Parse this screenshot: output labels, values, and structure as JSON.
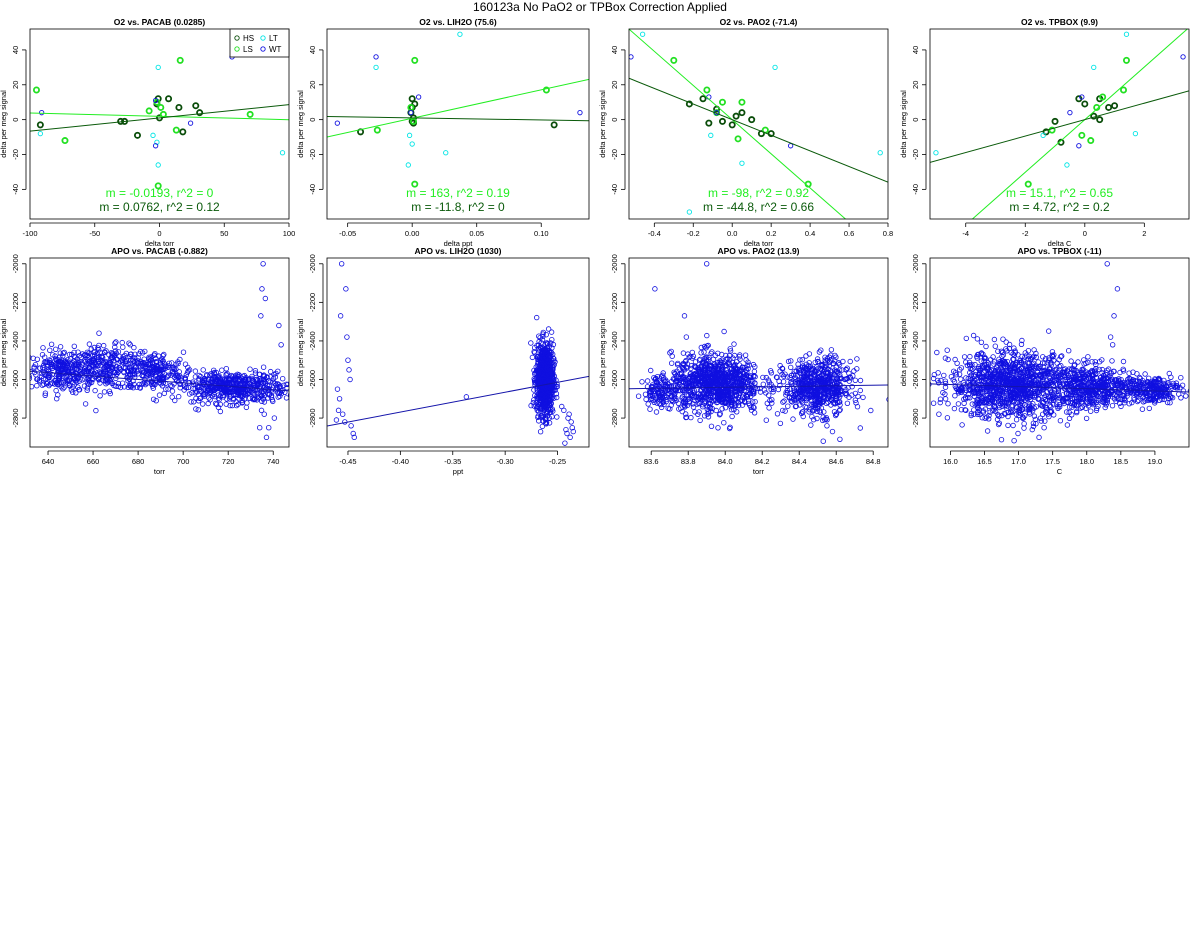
{
  "page": {
    "title": "160123a   No PaO2 or TPBox Correction Applied"
  },
  "colors": {
    "HS": "#0a4d0a",
    "LS": "#22e022",
    "LT": "#00e5e5",
    "WT": "#1010e0",
    "fit_dark": "#0a5a0a",
    "fit_light": "#22ee22",
    "fit_blue": "#1414aa",
    "axis": "#000000"
  },
  "legend": {
    "entries": [
      "HS",
      "LS",
      "LT",
      "WT"
    ]
  },
  "chart_data": [
    {
      "type": "scatter",
      "title": "O2 vs. PACAB (0.0285)",
      "xlabel": "delta torr",
      "ylabel": "delta per meg signal",
      "xlim": [
        -100,
        100
      ],
      "ylim": [
        -57,
        52
      ],
      "xticks": [
        -100,
        -50,
        0,
        50,
        100
      ],
      "xtick_labels": [
        "-100",
        "-50",
        "0",
        "50",
        "100"
      ],
      "yticks": [
        -40,
        -20,
        0,
        20,
        40
      ],
      "ytick_labels": [
        "-40",
        "-20",
        "0",
        "20",
        "40"
      ],
      "show_legend": true,
      "series": [
        {
          "name": "HS",
          "bold": true,
          "x": [
            -92,
            -30,
            -27,
            -17,
            -2,
            -1,
            0,
            7,
            15,
            18,
            28,
            31
          ],
          "y": [
            -3,
            -1,
            -1,
            -9,
            9,
            12,
            1,
            12,
            7,
            -7,
            8,
            4
          ]
        },
        {
          "name": "LS",
          "bold": true,
          "x": [
            -95,
            -73,
            -8,
            -2,
            3,
            13,
            16,
            70,
            -1,
            1
          ],
          "y": [
            17,
            -12,
            5,
            10,
            3,
            -6,
            34,
            3,
            -38,
            7
          ]
        },
        {
          "name": "LT",
          "bold": false,
          "x": [
            -1,
            -1,
            -5,
            -92,
            95,
            -2
          ],
          "y": [
            30,
            -26,
            -9,
            -8,
            -19,
            -13
          ]
        },
        {
          "name": "WT",
          "bold": false,
          "x": [
            -91,
            56,
            -3,
            -3,
            24
          ],
          "y": [
            4,
            36,
            -15,
            11,
            -2
          ]
        }
      ],
      "fits": [
        {
          "group": "LS",
          "slope": -0.0193,
          "intercept": 1.9
        },
        {
          "group": "HS",
          "slope": 0.0762,
          "intercept": 1.0
        }
      ],
      "annotations": [
        "m = -0.0193, r^2 = 0",
        "m = 0.0762, r^2 = 0.12"
      ]
    },
    {
      "type": "scatter",
      "title": "O2 vs. LIH2O (75.6)",
      "xlabel": "delta ppt",
      "ylabel": "delta per meg signal",
      "xlim": [
        -0.066,
        0.137
      ],
      "ylim": [
        -57,
        52
      ],
      "xticks": [
        -0.05,
        0.0,
        0.05,
        0.1
      ],
      "xtick_labels": [
        "-0.05",
        "0.00",
        "0.05",
        "0.10"
      ],
      "yticks": [
        -40,
        -20,
        0,
        20,
        40
      ],
      "ytick_labels": [
        "-40",
        "-20",
        "0",
        "20",
        "40"
      ],
      "show_legend": false,
      "series": [
        {
          "name": "HS",
          "bold": true,
          "x": [
            -0.04,
            0.0,
            0.001,
            0.002,
            0.0,
            0.001,
            -0.001,
            0.0,
            0.11
          ],
          "y": [
            -7,
            12,
            -2,
            9,
            -1,
            1,
            4,
            7,
            -3
          ]
        },
        {
          "name": "LS",
          "bold": true,
          "x": [
            -0.027,
            0.002,
            0.002,
            0.104,
            -0.001,
            0.001
          ],
          "y": [
            -6,
            34,
            -37,
            17,
            7,
            -1
          ]
        },
        {
          "name": "LT",
          "bold": false,
          "x": [
            0.037,
            -0.028,
            0.026,
            -0.002,
            -0.003,
            0.0
          ],
          "y": [
            49,
            30,
            -19,
            -9,
            -26,
            -14
          ]
        },
        {
          "name": "WT",
          "bold": false,
          "x": [
            -0.028,
            0.13,
            -0.058,
            0.005,
            -0.001
          ],
          "y": [
            36,
            4,
            -2,
            13,
            4
          ]
        }
      ],
      "fits": [
        {
          "group": "LS",
          "slope": 163,
          "intercept": 0.8
        },
        {
          "group": "HS",
          "slope": -11.8,
          "intercept": 1.0
        }
      ],
      "annotations": [
        "m = 163, r^2 = 0.19",
        "m = -11.8, r^2 = 0"
      ]
    },
    {
      "type": "scatter",
      "title": "O2 vs. PAO2 (-71.4)",
      "xlabel": "delta torr",
      "ylabel": "delta per meg signal",
      "xlim": [
        -0.53,
        0.8
      ],
      "ylim": [
        -57,
        52
      ],
      "xticks": [
        -0.4,
        -0.2,
        0.0,
        0.2,
        0.4,
        0.6,
        0.8
      ],
      "xtick_labels": [
        "-0.4",
        "-0.2",
        "0.0",
        "0.2",
        "0.4",
        "0.6",
        "0.8"
      ],
      "yticks": [
        -40,
        -20,
        0,
        20,
        40
      ],
      "ytick_labels": [
        "-40",
        "-20",
        "0",
        "20",
        "40"
      ],
      "show_legend": false,
      "series": [
        {
          "name": "HS",
          "bold": true,
          "x": [
            -0.22,
            -0.15,
            -0.08,
            -0.05,
            0.0,
            0.05,
            0.1,
            0.15,
            0.2,
            -0.12,
            0.02
          ],
          "y": [
            9,
            12,
            6,
            -1,
            -3,
            4,
            0,
            -8,
            -8,
            -2,
            2
          ]
        },
        {
          "name": "LS",
          "bold": true,
          "x": [
            -0.3,
            -0.13,
            -0.05,
            0.05,
            0.17,
            0.39,
            -0.08,
            0.03
          ],
          "y": [
            34,
            17,
            10,
            10,
            -6,
            -37,
            4,
            -11
          ]
        },
        {
          "name": "LT",
          "bold": false,
          "x": [
            -0.46,
            0.22,
            0.76,
            -0.22,
            -0.11,
            0.05
          ],
          "y": [
            49,
            30,
            -19,
            -53,
            -9,
            -25
          ]
        },
        {
          "name": "WT",
          "bold": false,
          "x": [
            -0.52,
            -0.12,
            0.3,
            -0.08
          ],
          "y": [
            36,
            13,
            -15,
            4
          ]
        }
      ],
      "fits": [
        {
          "group": "LS",
          "slope": -98,
          "intercept": 0.0
        },
        {
          "group": "HS",
          "slope": -44.8,
          "intercept": 0.0
        }
      ],
      "annotations": [
        "m = -98, r^2 = 0.92",
        "m = -44.8, r^2 = 0.66"
      ]
    },
    {
      "type": "scatter",
      "title": "O2 vs. TPBOX (9.9)",
      "xlabel": "delta C",
      "ylabel": "delta per meg signal",
      "xlim": [
        -5.2,
        3.5
      ],
      "ylim": [
        -57,
        52
      ],
      "xticks": [
        -4,
        -2,
        0,
        2
      ],
      "xtick_labels": [
        "-4",
        "-2",
        "0",
        "2"
      ],
      "yticks": [
        -40,
        -20,
        0,
        20,
        40
      ],
      "ytick_labels": [
        "-40",
        "-20",
        "0",
        "20",
        "40"
      ],
      "show_legend": false,
      "series": [
        {
          "name": "HS",
          "bold": true,
          "x": [
            -1.0,
            -1.3,
            0.0,
            0.3,
            0.5,
            0.8,
            1.0,
            -0.2,
            0.5,
            -0.8
          ],
          "y": [
            -1,
            -7,
            9,
            2,
            12,
            7,
            8,
            12,
            0,
            -13
          ]
        },
        {
          "name": "LS",
          "bold": true,
          "x": [
            -1.9,
            -0.1,
            0.6,
            1.3,
            1.4,
            -1.1,
            0.4,
            0.2
          ],
          "y": [
            -37,
            -9,
            13,
            17,
            34,
            -6,
            7,
            -12
          ]
        },
        {
          "name": "LT",
          "bold": false,
          "x": [
            1.4,
            0.3,
            -5.0,
            1.7,
            -0.6,
            -1.4
          ],
          "y": [
            49,
            30,
            -19,
            -8,
            -26,
            -9
          ]
        },
        {
          "name": "WT",
          "bold": false,
          "x": [
            3.3,
            -0.1,
            -0.2,
            -0.5
          ],
          "y": [
            36,
            13,
            -15,
            4
          ]
        }
      ],
      "fits": [
        {
          "group": "LS",
          "slope": 15.1,
          "intercept": 0.0
        },
        {
          "group": "HS",
          "slope": 4.72,
          "intercept": 0.0
        }
      ],
      "annotations": [
        "m = 15.1, r^2 = 0.65",
        "m = 4.72, r^2 = 0.2"
      ]
    },
    {
      "type": "scatter",
      "title": "APO vs. PACAB (-0.882)",
      "xlabel": "torr",
      "ylabel": "delta per meg signal",
      "xlim": [
        632,
        747
      ],
      "ylim": [
        -2950,
        -1970
      ],
      "xticks": [
        640,
        660,
        680,
        700,
        720,
        740
      ],
      "xtick_labels": [
        "640",
        "660",
        "680",
        "700",
        "720",
        "740"
      ],
      "yticks": [
        -2800,
        -2600,
        -2400,
        -2200,
        -2000
      ],
      "ytick_labels": [
        "-2800",
        "-2600",
        "-2400",
        "-2200",
        "-2000"
      ],
      "show_legend": false,
      "clusters": [
        {
          "cx": 646,
          "cy": -2555,
          "sx": 7,
          "sy": 55,
          "n": 240,
          "tilt": 0
        },
        {
          "cx": 667,
          "cy": -2540,
          "sx": 10,
          "sy": 55,
          "n": 300,
          "tilt": 0
        },
        {
          "cx": 688,
          "cy": -2560,
          "sx": 6,
          "sy": 50,
          "n": 180,
          "tilt": 0
        },
        {
          "cx": 722,
          "cy": -2640,
          "sx": 12,
          "sy": 40,
          "n": 520,
          "tilt": 0
        }
      ],
      "points": {
        "x": [
          735.5,
          735.0,
          736.5,
          734.5,
          742.5,
          743.5,
          740.5,
          738.0,
          737.0,
          734.0,
          736.0,
          734.8
        ],
        "y": [
          -2000,
          -2130,
          -2180,
          -2270,
          -2320,
          -2420,
          -2800,
          -2850,
          -2900,
          -2850,
          -2780,
          -2760
        ]
      },
      "fits": [
        {
          "group": "all",
          "slope": -0.882,
          "intercept": -2000.0
        }
      ]
    },
    {
      "type": "scatter",
      "title": "APO vs. LIH2O (1030)",
      "xlabel": "ppt",
      "ylabel": "delta per meg signal",
      "xlim": [
        -0.47,
        -0.22
      ],
      "ylim": [
        -2950,
        -1970
      ],
      "xticks": [
        -0.45,
        -0.4,
        -0.35,
        -0.3,
        -0.25
      ],
      "xtick_labels": [
        "-0.45",
        "-0.40",
        "-0.35",
        "-0.30",
        "-0.25"
      ],
      "yticks": [
        -2800,
        -2600,
        -2400,
        -2200,
        -2000
      ],
      "ytick_labels": [
        "-2800",
        "-2600",
        "-2400",
        "-2200",
        "-2000"
      ],
      "show_legend": false,
      "clusters": [
        {
          "cx": -0.262,
          "cy": -2600,
          "sx": 0.004,
          "sy": 90,
          "n": 900,
          "tilt": 0
        }
      ],
      "points": {
        "x": [
          -0.456,
          -0.452,
          -0.457,
          -0.451,
          -0.46,
          -0.458,
          -0.455,
          -0.45,
          -0.449,
          -0.448,
          -0.453,
          -0.461,
          -0.445,
          -0.447,
          -0.444,
          -0.459,
          -0.337,
          -0.244,
          -0.24,
          -0.236,
          -0.241,
          -0.238,
          -0.243,
          -0.235,
          -0.237,
          -0.239,
          -0.242,
          -0.246
        ],
        "y": [
          -2000,
          -2130,
          -2270,
          -2380,
          -2650,
          -2700,
          -2780,
          -2500,
          -2550,
          -2600,
          -2820,
          -2810,
          -2880,
          -2840,
          -2900,
          -2760,
          -2690,
          -2760,
          -2800,
          -2850,
          -2880,
          -2900,
          -2930,
          -2870,
          -2820,
          -2780,
          -2860,
          -2740
        ]
      },
      "fits": [
        {
          "group": "all",
          "slope": 1030,
          "intercept": -2357.0
        }
      ]
    },
    {
      "type": "scatter",
      "title": "APO vs. PAO2 (13.9)",
      "xlabel": "torr",
      "ylabel": "delta per meg signal",
      "xlim": [
        83.48,
        84.88
      ],
      "ylim": [
        -2950,
        -1970
      ],
      "xticks": [
        83.6,
        83.8,
        84.0,
        84.2,
        84.4,
        84.6,
        84.8
      ],
      "xtick_labels": [
        "83.6",
        "83.8",
        "84.0",
        "84.2",
        "84.4",
        "84.6",
        "84.8"
      ],
      "yticks": [
        -2800,
        -2600,
        -2400,
        -2200,
        -2000
      ],
      "ytick_labels": [
        "-2800",
        "-2600",
        "-2400",
        "-2200",
        "-2000"
      ],
      "show_legend": false,
      "clusters": [
        {
          "cx": 83.95,
          "cy": -2620,
          "sx": 0.12,
          "sy": 75,
          "n": 900,
          "tilt": 0
        },
        {
          "cx": 84.5,
          "cy": -2640,
          "sx": 0.09,
          "sy": 70,
          "n": 600,
          "tilt": 0
        },
        {
          "cx": 83.66,
          "cy": -2660,
          "sx": 0.05,
          "sy": 40,
          "n": 120,
          "tilt": 0
        }
      ],
      "points": {
        "x": [
          83.9,
          83.62,
          83.78,
          83.79,
          83.81,
          84.58,
          84.62,
          84.53,
          84.55,
          84.6
        ],
        "y": [
          -2000,
          -2130,
          -2270,
          -2380,
          -2480,
          -2870,
          -2910,
          -2920,
          -2840,
          -2780
        ]
      },
      "fits": [
        {
          "group": "all",
          "slope": 13.9,
          "intercept": -3808.3
        }
      ]
    },
    {
      "type": "scatter",
      "title": "APO vs. TPBOX (-11)",
      "xlabel": "C",
      "ylabel": "delta per meg signal",
      "xlim": [
        15.7,
        19.5
      ],
      "ylim": [
        -2950,
        -1970
      ],
      "xticks": [
        16.0,
        16.5,
        17.0,
        17.5,
        18.0,
        18.5,
        19.0
      ],
      "xtick_labels": [
        "16.0",
        "16.5",
        "17.0",
        "17.5",
        "18.0",
        "18.5",
        "19.0"
      ],
      "yticks": [
        -2800,
        -2600,
        -2400,
        -2200,
        -2000
      ],
      "ytick_labels": [
        "-2800",
        "-2600",
        "-2400",
        "-2200",
        "-2000"
      ],
      "show_legend": false,
      "clusters": [
        {
          "cx": 16.9,
          "cy": -2630,
          "sx": 0.45,
          "sy": 85,
          "n": 1100,
          "tilt": 0
        },
        {
          "cx": 18.1,
          "cy": -2640,
          "sx": 0.3,
          "sy": 55,
          "n": 450,
          "tilt": 0
        },
        {
          "cx": 18.9,
          "cy": -2650,
          "sx": 0.25,
          "sy": 35,
          "n": 250,
          "tilt": 0
        }
      ],
      "points": {
        "x": [
          18.3,
          18.45,
          18.4,
          18.35,
          18.38,
          15.8,
          15.85,
          17.3,
          17.2
        ],
        "y": [
          -2000,
          -2130,
          -2270,
          -2380,
          -2420,
          -2460,
          -2720,
          -2900,
          -2860
        ]
      },
      "fits": [
        {
          "group": "all",
          "slope": -11,
          "intercept": -2450.0
        }
      ]
    }
  ]
}
